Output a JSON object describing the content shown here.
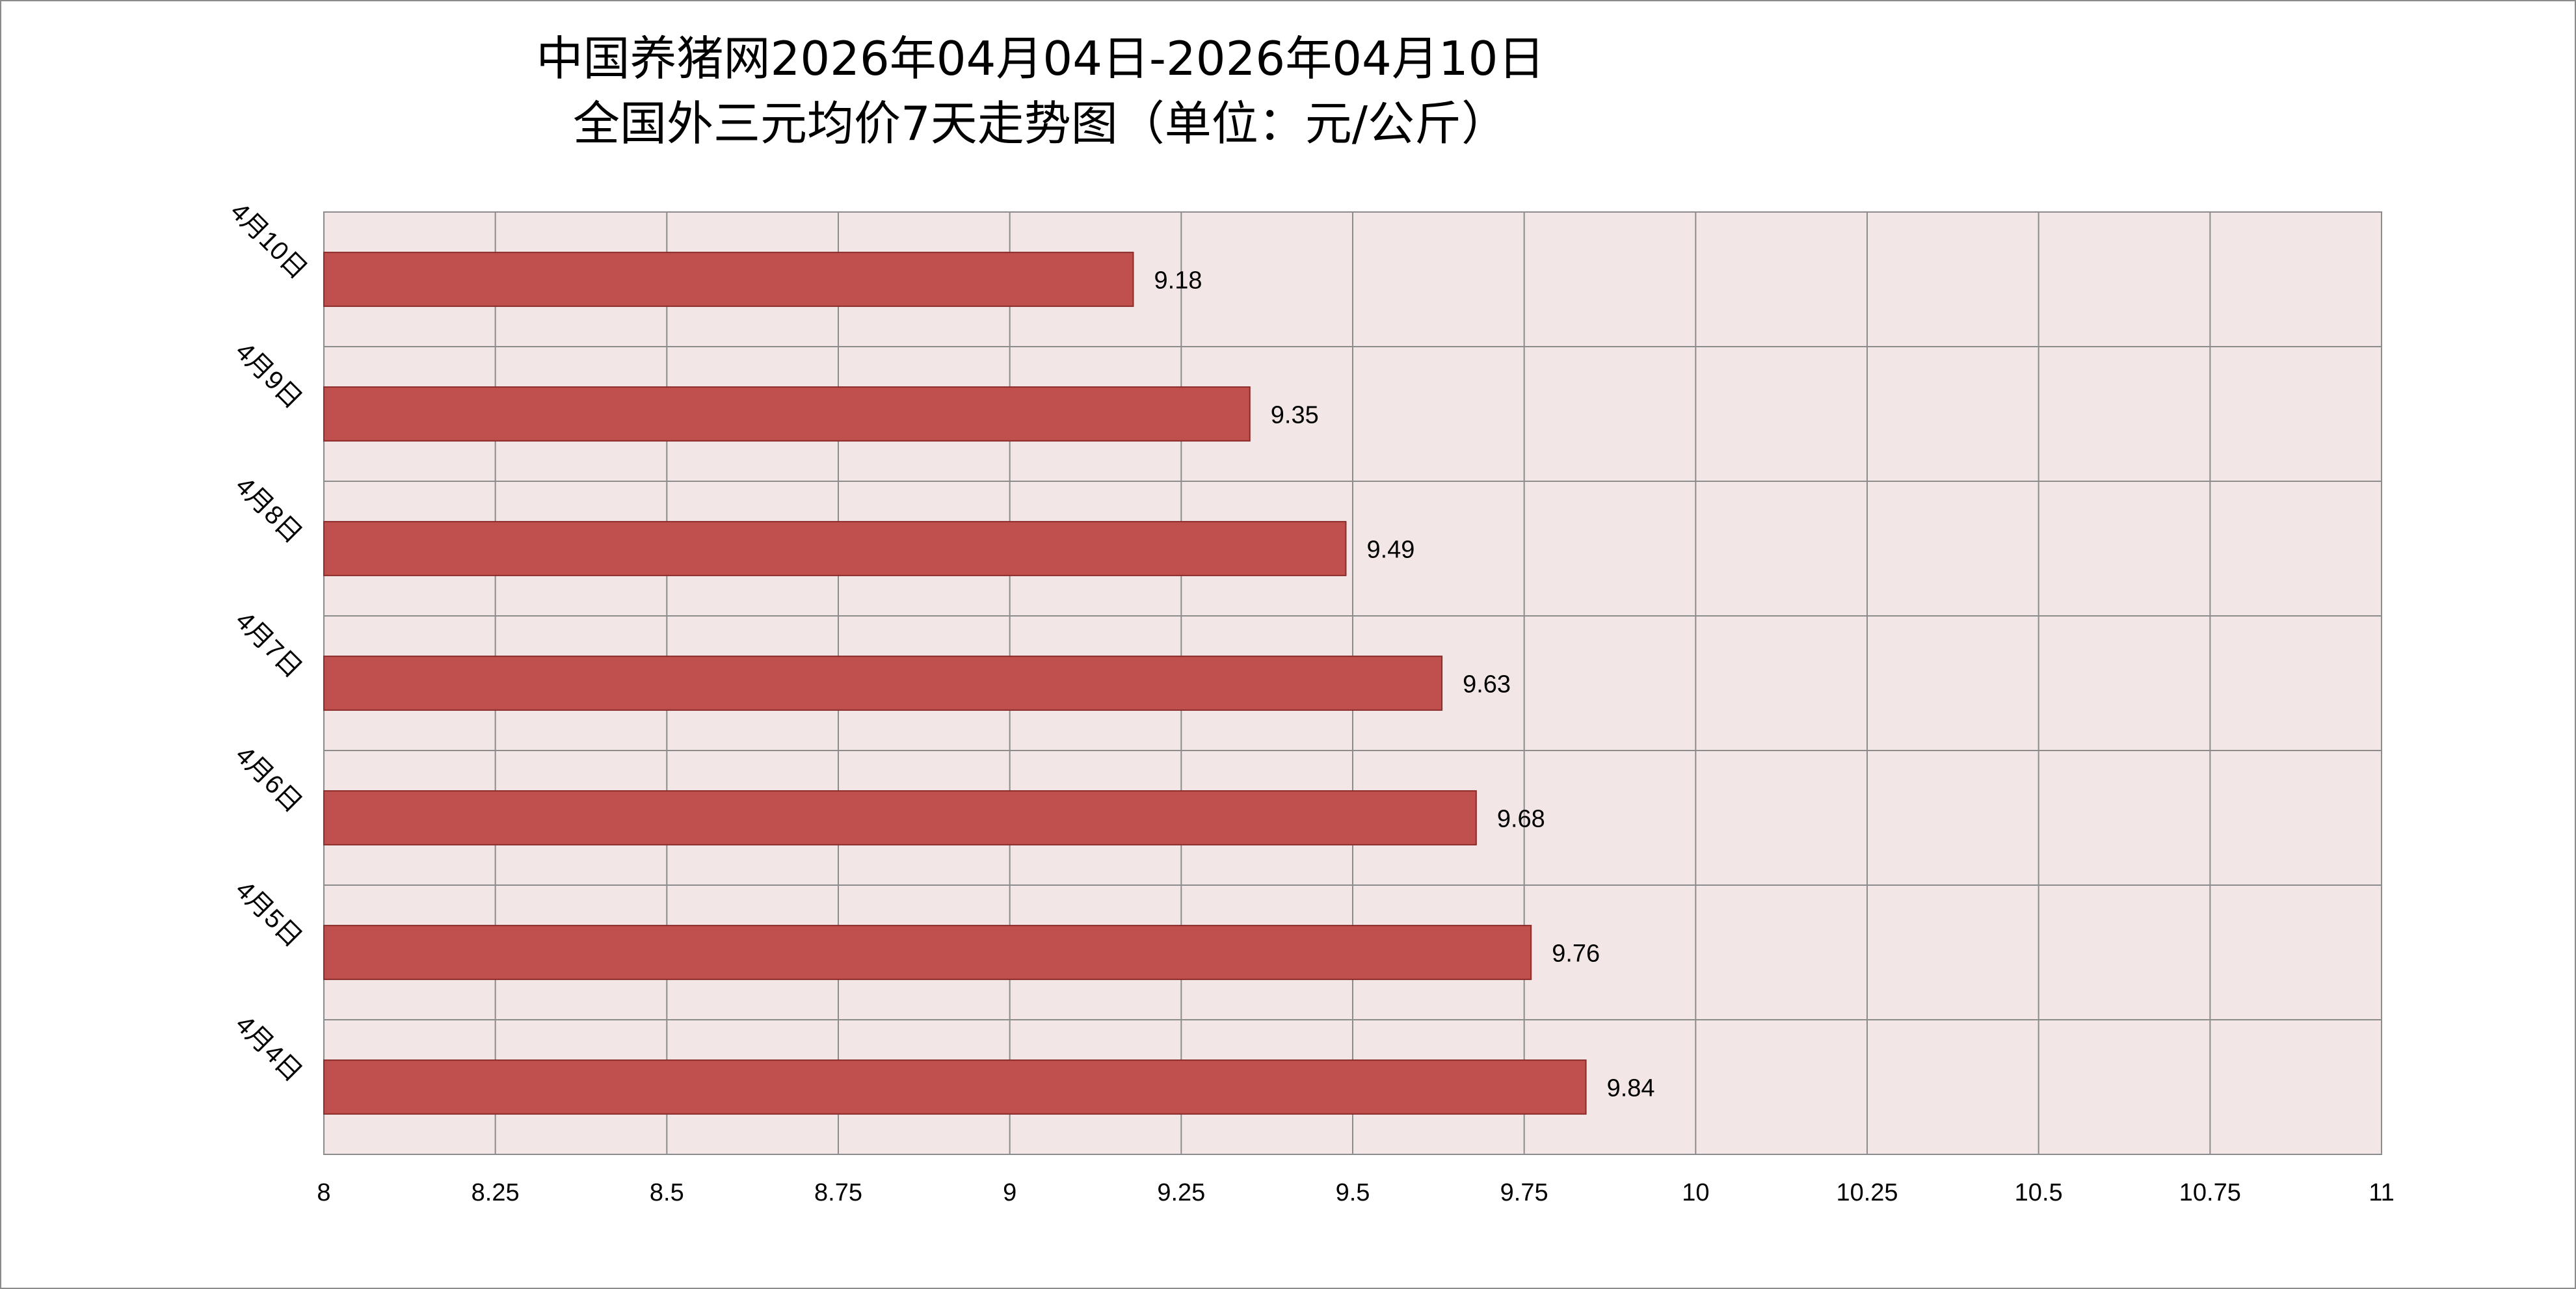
{
  "chart_data": {
    "type": "bar",
    "orientation": "horizontal",
    "title": "中国养猪网2026年04月04日-2026年04月10日",
    "subtitle": "全国外三元均价7天走势图（单位：元/公斤）",
    "xlabel": "",
    "ylabel": "",
    "categories": [
      "4月10日",
      "4月9日",
      "4月8日",
      "4月7日",
      "4月6日",
      "4月5日",
      "4月4日"
    ],
    "values": [
      9.18,
      9.35,
      9.49,
      9.63,
      9.68,
      9.76,
      9.84
    ],
    "xlim": [
      8,
      11
    ],
    "x_ticks": [
      "8",
      "8.25",
      "8.5",
      "8.75",
      "9",
      "9.25",
      "9.5",
      "9.75",
      "10",
      "10.25",
      "10.5",
      "10.75",
      "11"
    ],
    "grid": true,
    "legend": "none",
    "data_labels": true,
    "colors": {
      "bar": "#c0504d",
      "bar_border": "#8b2c2a",
      "plot_background": "#f2e6e6",
      "grid": "#8c8c8c"
    }
  }
}
